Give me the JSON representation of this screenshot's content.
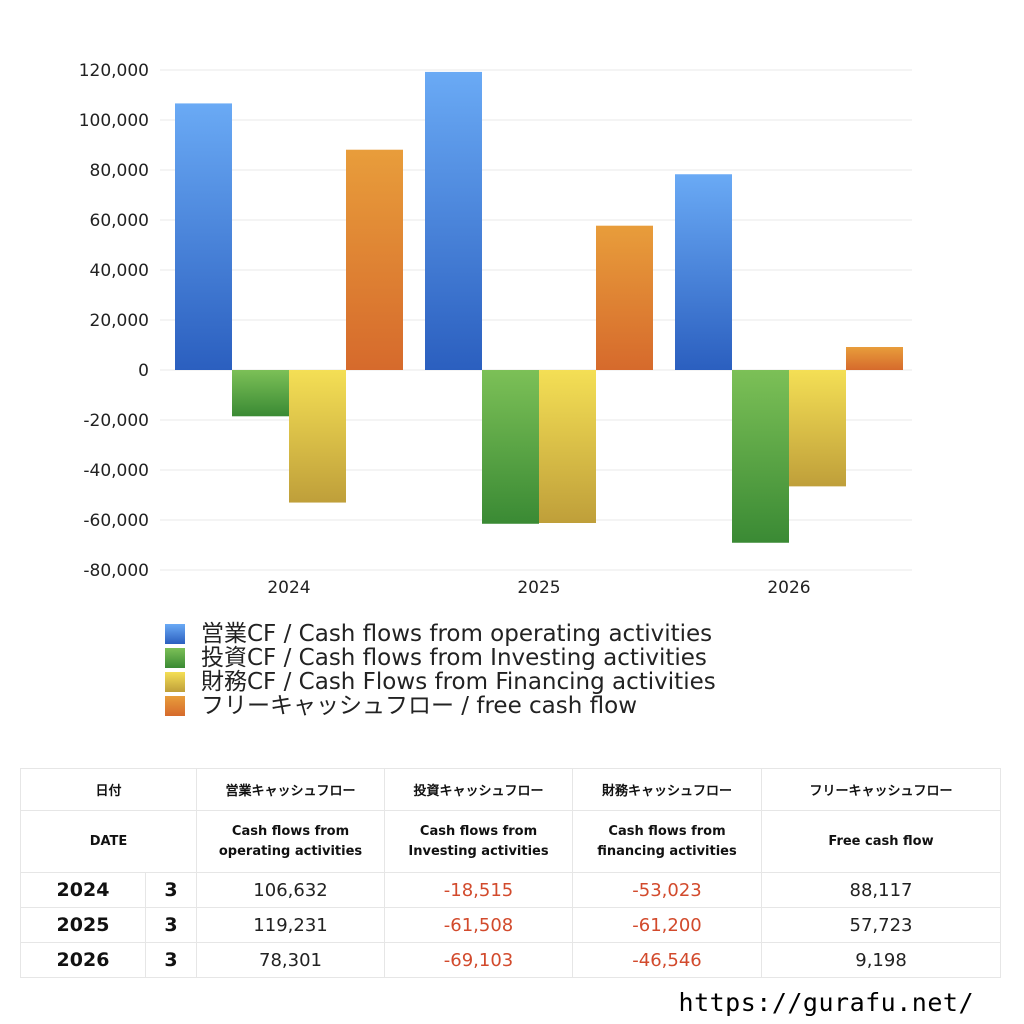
{
  "chart_data": {
    "type": "bar",
    "categories": [
      "2024",
      "2025",
      "2026"
    ],
    "ylim": [
      -80000,
      120000
    ],
    "yticks": [
      120000,
      100000,
      80000,
      60000,
      40000,
      20000,
      0,
      -20000,
      -40000,
      -60000,
      -80000
    ],
    "ytick_labels": [
      "120,000",
      "100,000",
      "80,000",
      "60,000",
      "40,000",
      "20,000",
      "0",
      "-20,000",
      "-40,000",
      "-60,000",
      "-80,000"
    ],
    "grid": true,
    "legend_position": "bottom",
    "series": [
      {
        "name": "営業CF / Cash flows from operating activities",
        "color_top": "#6aaaf5",
        "color_bottom": "#2b5fbf",
        "values": [
          106632,
          119231,
          78301
        ]
      },
      {
        "name": "投資CF / Cash flows from Investing activities",
        "color_top": "#7cc057",
        "color_bottom": "#3a8a34",
        "values": [
          -18515,
          -61508,
          -69103
        ]
      },
      {
        "name": "財務CF / Cash Flows from Financing activities",
        "color_top": "#f4df55",
        "color_bottom": "#bf9f3a",
        "values": [
          -53023,
          -61200,
          -46546
        ]
      },
      {
        "name": "フリーキャッシュフロー / free cash flow",
        "color_top": "#e89d3b",
        "color_bottom": "#d66a2c",
        "values": [
          88117,
          57723,
          9198
        ]
      }
    ]
  },
  "legend": [
    {
      "label": "営業CF / Cash flows from operating activities",
      "color": "#3f7fdc"
    },
    {
      "label": "投資CF / Cash flows from Investing activities",
      "color": "#5aa545"
    },
    {
      "label": "財務CF / Cash Flows from Financing activities",
      "color": "#e4c647"
    },
    {
      "label": "フリーキャッシュフロー / free cash flow",
      "color": "#e08334"
    }
  ],
  "table": {
    "headers_jp": [
      "日付",
      "営業キャッシュフロー",
      "投資キャッシュフロー",
      "財務キャッシュフロー",
      "フリーキャッシュフロー"
    ],
    "header_date_en": "DATE",
    "headers_en": [
      [
        "Cash flows from",
        "operating activities"
      ],
      [
        "Cash flows from",
        "Investing activities"
      ],
      [
        "Cash flows from",
        "financing activities"
      ],
      [
        "Free cash flow",
        ""
      ]
    ],
    "rows": [
      {
        "year": "2024",
        "month": "3",
        "values": [
          "106,632",
          "-18,515",
          "-53,023",
          "88,117"
        ]
      },
      {
        "year": "2025",
        "month": "3",
        "values": [
          "119,231",
          "-61,508",
          "-61,200",
          "57,723"
        ]
      },
      {
        "year": "2026",
        "month": "3",
        "values": [
          "78,301",
          "-69,103",
          "-46,546",
          "9,198"
        ]
      }
    ]
  },
  "footer": {
    "url": "https://gurafu.net/"
  }
}
